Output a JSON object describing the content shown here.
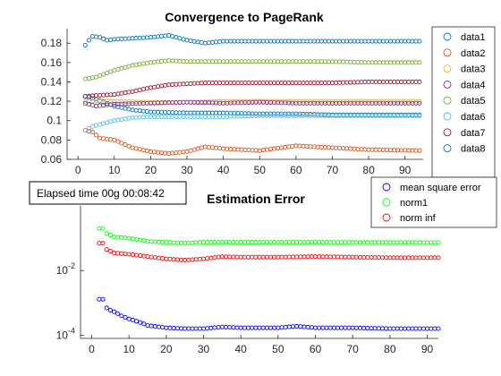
{
  "elapsed_label": "Elapsed time 00g 00:08:42",
  "chart_data": [
    {
      "type": "scatter",
      "title": "Convergence to PageRank",
      "xlabel": "",
      "ylabel": "",
      "xlim": [
        -3,
        95
      ],
      "ylim": [
        0.06,
        0.195
      ],
      "xticks": [
        0,
        10,
        20,
        30,
        40,
        50,
        60,
        70,
        80,
        90
      ],
      "xtick_labels": [
        "0",
        "10",
        "20",
        "30",
        "40",
        "50",
        "60",
        "70",
        "80",
        "90"
      ],
      "yticks": [
        0.06,
        0.08,
        0.1,
        0.12,
        0.14,
        0.16,
        0.18
      ],
      "ytick_labels": [
        "0.06",
        "0.08",
        "0.1",
        "0.12",
        "0.14",
        "0.16",
        "0.18"
      ],
      "legend_position": "top-right-outside",
      "x_range": [
        2,
        94
      ],
      "series": [
        {
          "name": "data1",
          "color": "#0072BD",
          "keypoints": [
            [
              2,
              0.125
            ],
            [
              5,
              0.122
            ],
            [
              10,
              0.115
            ],
            [
              15,
              0.111
            ],
            [
              20,
              0.109
            ],
            [
              30,
              0.108
            ],
            [
              40,
              0.108
            ],
            [
              50,
              0.107
            ],
            [
              60,
              0.107
            ],
            [
              70,
              0.106
            ],
            [
              80,
              0.106
            ],
            [
              94,
              0.106
            ]
          ]
        },
        {
          "name": "data2",
          "color": "#D95319",
          "keypoints": [
            [
              2,
              0.09
            ],
            [
              4,
              0.088
            ],
            [
              6,
              0.082
            ],
            [
              10,
              0.08
            ],
            [
              15,
              0.072
            ],
            [
              20,
              0.068
            ],
            [
              25,
              0.066
            ],
            [
              30,
              0.068
            ],
            [
              35,
              0.073
            ],
            [
              40,
              0.071
            ],
            [
              50,
              0.069
            ],
            [
              60,
              0.074
            ],
            [
              70,
              0.072
            ],
            [
              80,
              0.07
            ],
            [
              94,
              0.069
            ]
          ]
        },
        {
          "name": "data3",
          "color": "#EDB120",
          "keypoints": [
            [
              2,
              0.12
            ],
            [
              10,
              0.12
            ],
            [
              20,
              0.119
            ],
            [
              30,
              0.119
            ],
            [
              40,
              0.12
            ],
            [
              50,
              0.12
            ],
            [
              60,
              0.12
            ],
            [
              70,
              0.12
            ],
            [
              80,
              0.12
            ],
            [
              94,
              0.12
            ]
          ]
        },
        {
          "name": "data4",
          "color": "#7E2F8E",
          "keypoints": [
            [
              2,
              0.118
            ],
            [
              5,
              0.115
            ],
            [
              10,
              0.117
            ],
            [
              20,
              0.118
            ],
            [
              30,
              0.119
            ],
            [
              40,
              0.118
            ],
            [
              50,
              0.119
            ],
            [
              60,
              0.118
            ],
            [
              70,
              0.118
            ],
            [
              80,
              0.118
            ],
            [
              94,
              0.118
            ]
          ]
        },
        {
          "name": "data5",
          "color": "#77AC30",
          "keypoints": [
            [
              2,
              0.143
            ],
            [
              5,
              0.145
            ],
            [
              10,
              0.152
            ],
            [
              15,
              0.157
            ],
            [
              20,
              0.16
            ],
            [
              25,
              0.162
            ],
            [
              30,
              0.161
            ],
            [
              40,
              0.161
            ],
            [
              50,
              0.161
            ],
            [
              60,
              0.161
            ],
            [
              70,
              0.161
            ],
            [
              80,
              0.16
            ],
            [
              94,
              0.16
            ]
          ]
        },
        {
          "name": "data6",
          "color": "#4DBEEE",
          "keypoints": [
            [
              2,
              0.09
            ],
            [
              4,
              0.094
            ],
            [
              7,
              0.097
            ],
            [
              10,
              0.1
            ],
            [
              15,
              0.103
            ],
            [
              20,
              0.104
            ],
            [
              30,
              0.104
            ],
            [
              40,
              0.104
            ],
            [
              50,
              0.105
            ],
            [
              60,
              0.105
            ],
            [
              70,
              0.105
            ],
            [
              80,
              0.105
            ],
            [
              94,
              0.105
            ]
          ]
        },
        {
          "name": "data7",
          "color": "#A2142F",
          "keypoints": [
            [
              2,
              0.125
            ],
            [
              5,
              0.126
            ],
            [
              10,
              0.127
            ],
            [
              15,
              0.13
            ],
            [
              20,
              0.134
            ],
            [
              25,
              0.137
            ],
            [
              30,
              0.138
            ],
            [
              35,
              0.139
            ],
            [
              40,
              0.139
            ],
            [
              50,
              0.139
            ],
            [
              60,
              0.139
            ],
            [
              70,
              0.139
            ],
            [
              80,
              0.14
            ],
            [
              94,
              0.14
            ]
          ]
        },
        {
          "name": "data8",
          "color": "#0072BD",
          "keypoints": [
            [
              2,
              0.178
            ],
            [
              3,
              0.183
            ],
            [
              4,
              0.187
            ],
            [
              6,
              0.186
            ],
            [
              8,
              0.183
            ],
            [
              10,
              0.184
            ],
            [
              15,
              0.185
            ],
            [
              20,
              0.186
            ],
            [
              25,
              0.188
            ],
            [
              30,
              0.183
            ],
            [
              35,
              0.18
            ],
            [
              40,
              0.182
            ],
            [
              50,
              0.182
            ],
            [
              60,
              0.182
            ],
            [
              70,
              0.182
            ],
            [
              80,
              0.182
            ],
            [
              94,
              0.182
            ]
          ]
        }
      ]
    },
    {
      "type": "scatter",
      "title": "Estimation Error",
      "xlabel": "",
      "ylabel": "",
      "yscale": "log",
      "xlim": [
        -3,
        93
      ],
      "ylim": [
        8e-05,
        1
      ],
      "xticks": [
        0,
        10,
        20,
        30,
        40,
        50,
        60,
        70,
        80,
        90
      ],
      "xtick_labels": [
        "0",
        "10",
        "20",
        "30",
        "40",
        "50",
        "60",
        "70",
        "80",
        "90"
      ],
      "yticks": [
        0.0001,
        0.01
      ],
      "ytick_labels": [
        {
          "base": "10",
          "exp": "-4"
        },
        {
          "base": "10",
          "exp": "-2"
        }
      ],
      "legend_position": "top-right",
      "x_range": [
        2,
        93
      ],
      "series": [
        {
          "name": "mean square error",
          "color": "#0000FF",
          "keypoints": [
            [
              2,
              0.0013
            ],
            [
              3,
              0.0013
            ],
            [
              4,
              0.0007
            ],
            [
              5,
              0.0006
            ],
            [
              8,
              0.0004
            ],
            [
              10,
              0.00032
            ],
            [
              15,
              0.0002
            ],
            [
              20,
              0.00017
            ],
            [
              25,
              0.00016
            ],
            [
              30,
              0.00016
            ],
            [
              35,
              0.00018
            ],
            [
              40,
              0.00017
            ],
            [
              50,
              0.00017
            ],
            [
              55,
              0.00019
            ],
            [
              60,
              0.00017
            ],
            [
              70,
              0.00017
            ],
            [
              80,
              0.00016
            ],
            [
              93,
              0.00016
            ]
          ]
        },
        {
          "name": "norm1",
          "color": "#00FF00",
          "keypoints": [
            [
              2,
              0.2
            ],
            [
              3,
              0.2
            ],
            [
              4,
              0.14
            ],
            [
              6,
              0.11
            ],
            [
              10,
              0.1
            ],
            [
              15,
              0.08
            ],
            [
              20,
              0.075
            ],
            [
              25,
              0.07
            ],
            [
              30,
              0.075
            ],
            [
              40,
              0.075
            ],
            [
              50,
              0.075
            ],
            [
              60,
              0.075
            ],
            [
              70,
              0.074
            ],
            [
              80,
              0.074
            ],
            [
              93,
              0.073
            ]
          ]
        },
        {
          "name": "norm inf",
          "color": "#FF0000",
          "keypoints": [
            [
              2,
              0.07
            ],
            [
              3,
              0.07
            ],
            [
              4,
              0.045
            ],
            [
              6,
              0.035
            ],
            [
              10,
              0.032
            ],
            [
              15,
              0.027
            ],
            [
              20,
              0.023
            ],
            [
              25,
              0.021
            ],
            [
              30,
              0.023
            ],
            [
              35,
              0.027
            ],
            [
              40,
              0.026
            ],
            [
              50,
              0.026
            ],
            [
              60,
              0.027
            ],
            [
              70,
              0.026
            ],
            [
              80,
              0.025
            ],
            [
              93,
              0.025
            ]
          ]
        }
      ]
    }
  ]
}
